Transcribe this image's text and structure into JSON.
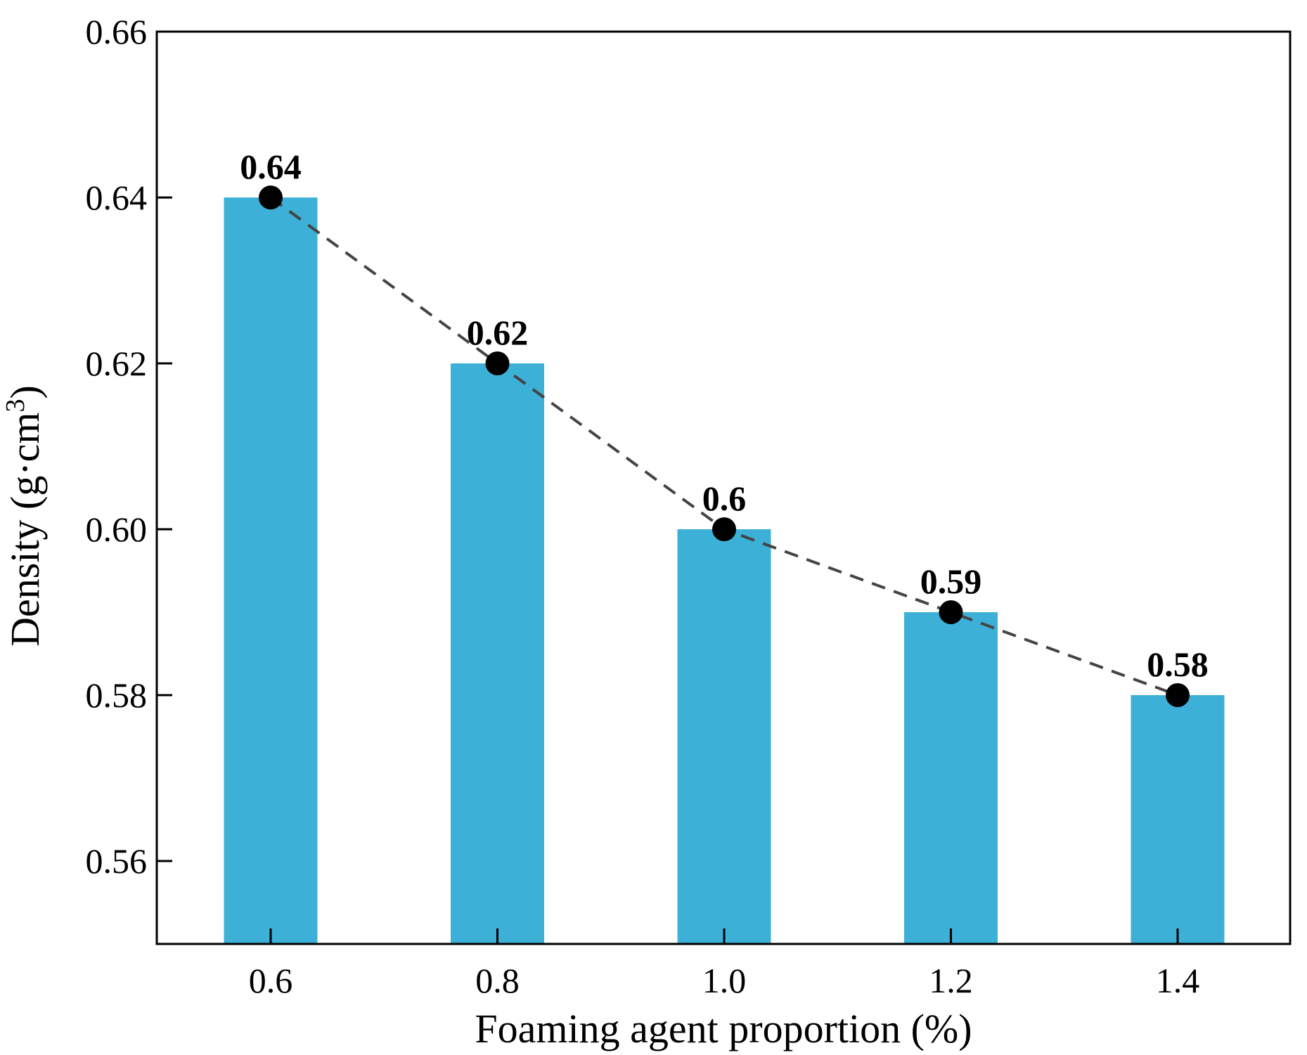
{
  "chart_data": {
    "type": "bar",
    "title": "",
    "xlabel": "Foaming agent proportion (%)",
    "ylabel_main": "Density (g·cm",
    "ylabel_superscript": "3",
    "ylabel_close": ")",
    "categories": [
      "0.6",
      "0.8",
      "1.0",
      "1.2",
      "1.4"
    ],
    "values": [
      0.64,
      0.62,
      0.6,
      0.59,
      0.58
    ],
    "data_labels": [
      "0.64",
      "0.62",
      "0.6",
      "0.59",
      "0.58"
    ],
    "ylim": [
      0.55,
      0.66
    ],
    "yticks": [
      0.56,
      0.58,
      0.6,
      0.62,
      0.64,
      0.66
    ],
    "ytick_labels": [
      "0.56",
      "0.58",
      "0.60",
      "0.62",
      "0.64",
      "0.66"
    ],
    "overlay_line": {
      "style": "dashed",
      "markers": "filled-circle",
      "values": [
        0.64,
        0.62,
        0.6,
        0.59,
        0.58
      ]
    },
    "grid": false,
    "legend": "none",
    "colors": {
      "bar": "#3cb0d7",
      "line": "#444444",
      "marker": "#000000",
      "axis": "#000000"
    }
  }
}
